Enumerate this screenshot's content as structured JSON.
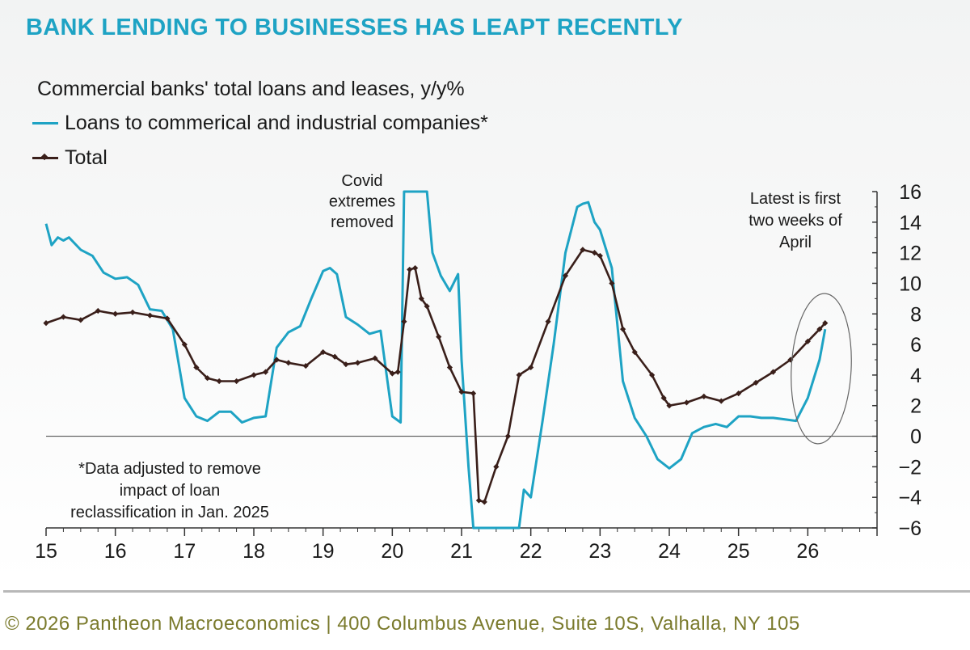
{
  "chart_data": {
    "type": "line",
    "title": "BANK LENDING TO BUSINESSES HAS LEAPT RECENTLY",
    "subtitle": "Commercial banks' total loans and leases, y/y%",
    "xlabel": "",
    "ylabel": "",
    "x_tick_labels": [
      "15",
      "16",
      "17",
      "18",
      "19",
      "20",
      "21",
      "22",
      "23",
      "24",
      "25",
      "26"
    ],
    "x_tick_values": [
      15,
      16,
      17,
      18,
      19,
      20,
      21,
      22,
      23,
      24,
      25,
      26
    ],
    "xlim": [
      15,
      27
    ],
    "ylim": [
      -6,
      16
    ],
    "y_ticks": [
      16,
      14,
      12,
      10,
      8,
      6,
      4,
      2,
      0,
      -2,
      -4,
      -6
    ],
    "y_axis_position": "right",
    "legend_position": "top-left",
    "series": [
      {
        "name": "Loans to commerical and industrial companies*",
        "color": "#1ea3c4",
        "marker": "none",
        "x": [
          15.0,
          15.08,
          15.17,
          15.25,
          15.33,
          15.5,
          15.67,
          15.83,
          16.0,
          16.17,
          16.33,
          16.5,
          16.67,
          16.83,
          17.0,
          17.17,
          17.33,
          17.5,
          17.67,
          17.83,
          18.0,
          18.17,
          18.33,
          18.5,
          18.67,
          18.83,
          19.0,
          19.1,
          19.2,
          19.33,
          19.5,
          19.67,
          19.83,
          20.0,
          20.12,
          20.17,
          20.5,
          20.58,
          20.7,
          20.83,
          20.95,
          21.0,
          21.1,
          21.17,
          21.25,
          21.83,
          21.9,
          22.0,
          22.17,
          22.33,
          22.5,
          22.67,
          22.75,
          22.83,
          22.92,
          23.0,
          23.17,
          23.33,
          23.5,
          23.67,
          23.83,
          24.0,
          24.17,
          24.33,
          24.5,
          24.67,
          24.83,
          25.0,
          25.17,
          25.33,
          25.5,
          25.67,
          25.83,
          26.0,
          26.17,
          26.25
        ],
        "y": [
          13.9,
          12.5,
          13.0,
          12.8,
          13.0,
          12.2,
          11.8,
          10.7,
          10.3,
          10.4,
          9.9,
          8.3,
          8.2,
          7.0,
          2.5,
          1.3,
          1.0,
          1.6,
          1.6,
          0.9,
          1.2,
          1.3,
          5.8,
          6.8,
          7.2,
          9.0,
          10.8,
          11.0,
          10.6,
          7.8,
          7.3,
          6.7,
          6.9,
          1.3,
          0.9,
          16.0,
          16.0,
          12.0,
          10.5,
          9.5,
          10.6,
          5.0,
          -2.0,
          -6.0,
          -6.0,
          -6.0,
          -3.5,
          -4.0,
          1.0,
          6.0,
          12.0,
          15.0,
          15.2,
          15.3,
          14.0,
          13.5,
          11.0,
          3.6,
          1.2,
          0.0,
          -1.5,
          -2.1,
          -1.5,
          0.2,
          0.6,
          0.8,
          0.6,
          1.3,
          1.3,
          1.2,
          1.2,
          1.1,
          1.0,
          2.5,
          5.0,
          7.0
        ]
      },
      {
        "name": "Total",
        "color": "#3a1f1a",
        "marker": "diamond",
        "x": [
          15.0,
          15.25,
          15.5,
          15.75,
          16.0,
          16.25,
          16.5,
          16.75,
          17.0,
          17.17,
          17.33,
          17.5,
          17.75,
          18.0,
          18.17,
          18.33,
          18.5,
          18.75,
          19.0,
          19.17,
          19.33,
          19.5,
          19.75,
          20.0,
          20.08,
          20.17,
          20.25,
          20.33,
          20.42,
          20.5,
          20.67,
          20.83,
          21.0,
          21.17,
          21.25,
          21.33,
          21.5,
          21.67,
          21.83,
          22.0,
          22.25,
          22.5,
          22.75,
          22.92,
          23.0,
          23.17,
          23.33,
          23.5,
          23.75,
          23.92,
          24.0,
          24.25,
          24.5,
          24.75,
          25.0,
          25.25,
          25.5,
          25.75,
          26.0,
          26.17,
          26.25
        ],
        "y": [
          7.4,
          7.8,
          7.6,
          8.2,
          8.0,
          8.1,
          7.9,
          7.7,
          6.0,
          4.5,
          3.8,
          3.6,
          3.6,
          4.0,
          4.2,
          5.0,
          4.8,
          4.6,
          5.5,
          5.2,
          4.7,
          4.8,
          5.1,
          4.1,
          4.2,
          7.5,
          10.9,
          11.0,
          9.0,
          8.5,
          6.5,
          4.5,
          2.9,
          2.8,
          -4.2,
          -4.3,
          -2.0,
          0.0,
          4.0,
          4.5,
          7.5,
          10.5,
          12.2,
          12.0,
          11.8,
          10.0,
          7.0,
          5.5,
          4.0,
          2.5,
          2.0,
          2.2,
          2.6,
          2.3,
          2.8,
          3.5,
          4.2,
          5.0,
          6.2,
          7.0,
          7.4
        ]
      }
    ],
    "annotations": {
      "covid": [
        "Covid",
        "extremes",
        "removed"
      ],
      "latest": [
        "Latest is first",
        "two weeks of",
        "April"
      ],
      "footnote": [
        "*Data adjusted to remove",
        "impact of loan",
        "reclassification in Jan. 2025"
      ]
    }
  },
  "footer": {
    "copyright": "© 2026 Pantheon Macroeconomics | 400 Columbus Avenue, Suite 10S, Valhalla, NY 105"
  }
}
